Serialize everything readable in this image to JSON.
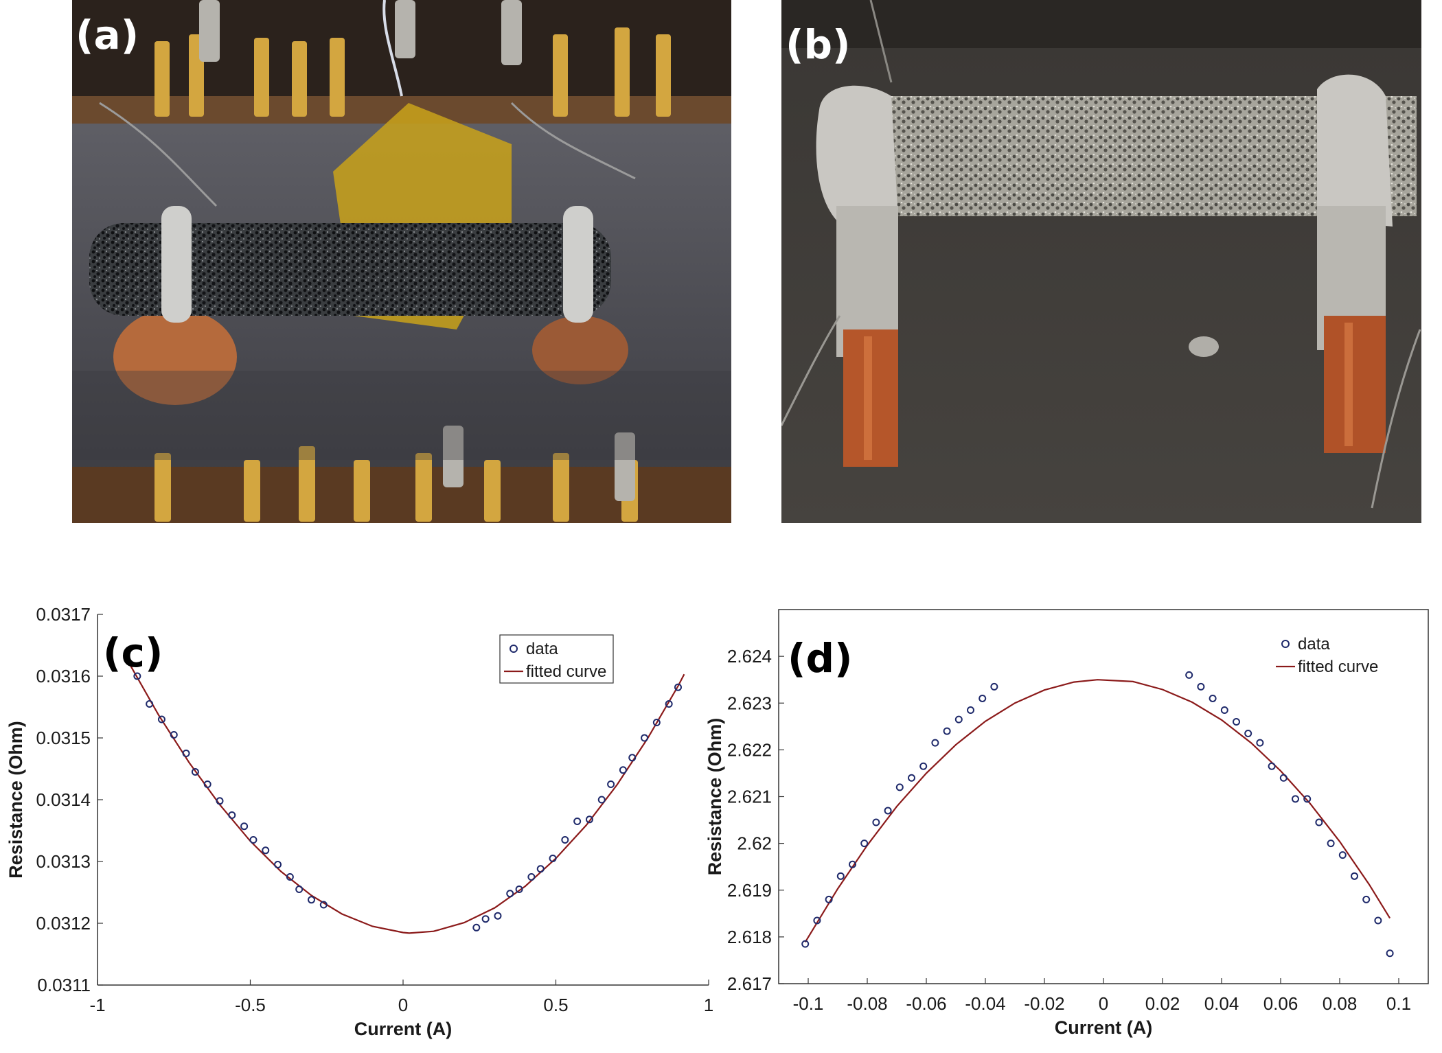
{
  "panels": {
    "a": {
      "label": "(a)"
    },
    "b": {
      "label": "(b)"
    },
    "c": {
      "label": "(c)"
    },
    "d": {
      "label": "(d)"
    }
  },
  "colors": {
    "data_marker": "#1f2a6b",
    "fitted_curve": "#8b1a1a",
    "axis": "#333333"
  },
  "chart_data": [
    {
      "panel": "c",
      "type": "scatter",
      "xlabel": "Current (A)",
      "ylabel": "Resistance (Ohm)",
      "xlim": [
        -1,
        1
      ],
      "ylim": [
        0.0311,
        0.0317
      ],
      "xticks": [
        "-1",
        "-0.5",
        "0",
        "0.5",
        "1"
      ],
      "yticks": [
        "0.0311",
        "0.0312",
        "0.0313",
        "0.0314",
        "0.0315",
        "0.0316",
        "0.0317"
      ],
      "legend": {
        "position": "top-right",
        "entries": [
          "data",
          "fitted curve"
        ]
      },
      "grid": false,
      "series": [
        {
          "name": "data",
          "mode": "markers",
          "x": [
            -0.87,
            -0.83,
            -0.79,
            -0.75,
            -0.71,
            -0.68,
            -0.64,
            -0.6,
            -0.56,
            -0.52,
            -0.49,
            -0.45,
            -0.41,
            -0.37,
            -0.34,
            -0.3,
            -0.26,
            0.24,
            0.27,
            0.31,
            0.35,
            0.38,
            0.42,
            0.45,
            0.49,
            0.53,
            0.57,
            0.61,
            0.65,
            0.68,
            0.72,
            0.75,
            0.79,
            0.83,
            0.87,
            0.9
          ],
          "y": [
            0.0316,
            0.031555,
            0.03153,
            0.031505,
            0.031475,
            0.031445,
            0.031425,
            0.031398,
            0.031375,
            0.031357,
            0.031335,
            0.031318,
            0.031295,
            0.031275,
            0.031255,
            0.031238,
            0.03123,
            0.031193,
            0.031207,
            0.031212,
            0.031248,
            0.031255,
            0.031275,
            0.031288,
            0.031305,
            0.031335,
            0.031365,
            0.031368,
            0.0314,
            0.031425,
            0.031448,
            0.031468,
            0.0315,
            0.031525,
            0.031555,
            0.031582
          ]
        },
        {
          "name": "fitted curve",
          "mode": "line",
          "model": "quadratic",
          "x": [
            -0.9,
            -0.8,
            -0.7,
            -0.6,
            -0.5,
            -0.4,
            -0.3,
            -0.2,
            -0.1,
            0.0,
            0.02,
            0.1,
            0.2,
            0.3,
            0.4,
            0.5,
            0.6,
            0.7,
            0.8,
            0.9,
            0.92
          ],
          "y": [
            0.031624,
            0.031537,
            0.03146,
            0.031392,
            0.031333,
            0.031284,
            0.031245,
            0.031215,
            0.031195,
            0.031185,
            0.031184,
            0.031187,
            0.031201,
            0.031225,
            0.03126,
            0.031305,
            0.031359,
            0.031424,
            0.031499,
            0.031584,
            0.031603
          ]
        }
      ]
    },
    {
      "panel": "d",
      "type": "scatter",
      "xlabel": "Current (A)",
      "ylabel": "Resistance (Ohm)",
      "xlim": [
        -0.11,
        0.11
      ],
      "ylim": [
        2.617,
        2.625
      ],
      "xticks": [
        "-0.1",
        "-0.08",
        "-0.06",
        "-0.04",
        "-0.02",
        "0",
        "0.02",
        "0.04",
        "0.06",
        "0.08",
        "0.1"
      ],
      "yticks": [
        "2.617",
        "2.618",
        "2.619",
        "2.62",
        "2.621",
        "2.622",
        "2.623",
        "2.624"
      ],
      "legend": {
        "position": "top-right",
        "entries": [
          "data",
          "fitted curve"
        ]
      },
      "grid": false,
      "series": [
        {
          "name": "data",
          "mode": "markers",
          "x": [
            -0.101,
            -0.097,
            -0.093,
            -0.089,
            -0.085,
            -0.081,
            -0.077,
            -0.073,
            -0.069,
            -0.065,
            -0.061,
            -0.057,
            -0.053,
            -0.049,
            -0.045,
            -0.041,
            -0.037,
            0.029,
            0.033,
            0.037,
            0.041,
            0.045,
            0.049,
            0.053,
            0.057,
            0.061,
            0.065,
            0.069,
            0.073,
            0.077,
            0.081,
            0.085,
            0.089,
            0.093,
            0.097
          ],
          "y": [
            2.61785,
            2.61835,
            2.6188,
            2.6193,
            2.61955,
            2.62,
            2.62045,
            2.6207,
            2.6212,
            2.6214,
            2.62165,
            2.62215,
            2.6224,
            2.62265,
            2.62285,
            2.6231,
            2.62335,
            2.6236,
            2.62335,
            2.6231,
            2.62285,
            2.6226,
            2.62235,
            2.62215,
            2.62165,
            2.6214,
            2.62095,
            2.62095,
            2.62045,
            2.62,
            2.61975,
            2.6193,
            2.6188,
            2.61835,
            2.61765
          ]
        },
        {
          "name": "fitted curve",
          "mode": "line",
          "model": "quadratic",
          "x": [
            -0.101,
            -0.09,
            -0.08,
            -0.07,
            -0.06,
            -0.05,
            -0.04,
            -0.03,
            -0.02,
            -0.01,
            -0.002,
            0.01,
            0.02,
            0.03,
            0.04,
            0.05,
            0.06,
            0.07,
            0.08,
            0.09,
            0.097
          ],
          "y": [
            2.61789,
            2.61903,
            2.61996,
            2.62079,
            2.6215,
            2.62211,
            2.62261,
            2.623,
            2.62328,
            2.62345,
            2.6235,
            2.62346,
            2.62329,
            2.62302,
            2.62264,
            2.62215,
            2.62155,
            2.62085,
            2.62004,
            2.61912,
            2.6184
          ]
        }
      ]
    }
  ]
}
